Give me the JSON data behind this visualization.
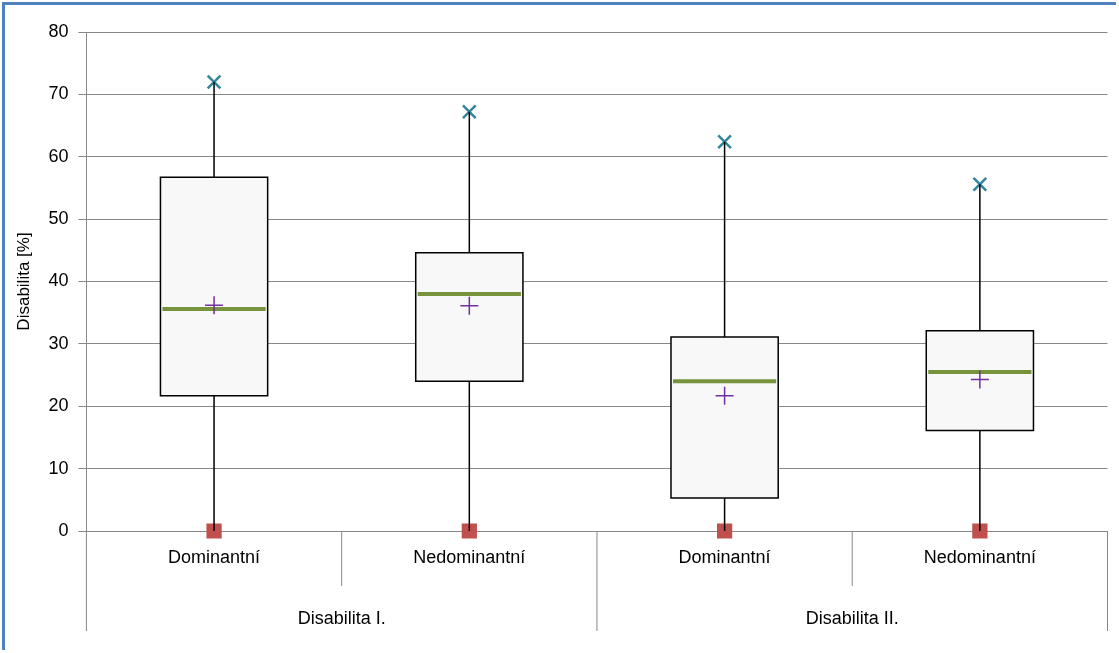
{
  "chart_data": {
    "type": "box",
    "ylabel": "Disabilita [%]",
    "categories": [
      "Dominantní",
      "Nedominantní",
      "Dominantní",
      "Nedominantní"
    ],
    "boxes": [
      {
        "low": 0,
        "q1": 21.7,
        "median": 35.6,
        "q3": 56.7,
        "high": 72,
        "mean": 36.2
      },
      {
        "low": 0,
        "q1": 24,
        "median": 38,
        "q3": 44.6,
        "high": 67.2,
        "mean": 36.1
      },
      {
        "low": 0,
        "q1": 5.3,
        "median": 24,
        "q3": 31.1,
        "high": 62.4,
        "mean": 21.7
      },
      {
        "low": 0,
        "q1": 16.1,
        "median": 25.5,
        "q3": 32.1,
        "high": 55.6,
        "mean": 24.3
      }
    ],
    "series": [
      {
        "type": "scatter",
        "values": [
          72,
          67.2,
          62.4,
          55.6
        ],
        "color": "#31859c",
        "marker": "cross"
      },
      {
        "type": "scatter",
        "values": [
          0,
          0,
          0,
          0
        ],
        "color": "#c0504d",
        "marker": "square"
      }
    ],
    "annotations": [
      "Disabilita I.",
      "Disabilita II."
    ],
    "ylim": [
      0,
      80
    ],
    "yticks": [
      0,
      10,
      20,
      30,
      40,
      50,
      60,
      70,
      80
    ],
    "grid": "y"
  }
}
